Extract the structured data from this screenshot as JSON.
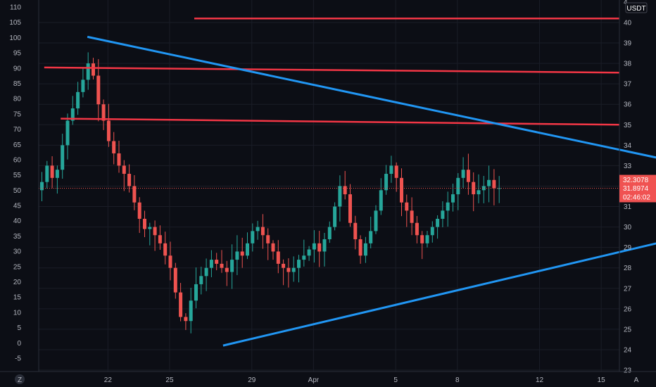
{
  "chart_data": {
    "type": "candlestick",
    "currency_label": "USDT",
    "left_axis": {
      "ticks": [
        110,
        105,
        100,
        95,
        90,
        85,
        80,
        75,
        70,
        65,
        60,
        55,
        50,
        45,
        40,
        35,
        30,
        25,
        20,
        15,
        10,
        5,
        0,
        -5
      ]
    },
    "right_axis": {
      "ticks": [
        40,
        39,
        38,
        37,
        36,
        35,
        34,
        33,
        32,
        31,
        30,
        29,
        28,
        27,
        26,
        25,
        24,
        23
      ],
      "top_partial_label": "4"
    },
    "x_axis": {
      "ticks": [
        "22",
        "25",
        "29",
        "Apr",
        "5",
        "8",
        "12",
        "15"
      ]
    },
    "price_labels": {
      "upper": "32.3078",
      "current": "31.8974",
      "countdown": "02:46:02"
    },
    "current_price": 31.8974,
    "corner_labels": {
      "left": "Z",
      "right": "A"
    },
    "colors": {
      "up": "#26a69a",
      "down": "#ef5350",
      "horizontal_lines": "#f23645",
      "trendlines": "#2196f3",
      "background": "#0c0e15"
    },
    "horizontal_levels": [
      {
        "start_day": 7.5,
        "price": 40.2
      },
      {
        "start_day": 0.2,
        "price": 37.8,
        "end_price": 37.55
      },
      {
        "start_day": 1.0,
        "price": 35.3,
        "end_price": 35.0
      }
    ],
    "trendlines": [
      {
        "from_day": 2.3,
        "from_price": 39.3,
        "to_day": 38.4,
        "to_price": 31.6
      },
      {
        "from_day": 8.9,
        "from_price": 24.2,
        "to_day": 38.0,
        "to_price": 31.1
      }
    ],
    "close_series": [
      32.2,
      33.0,
      32.4,
      32.8,
      34.0,
      35.2,
      35.8,
      36.6,
      37.2,
      38.0,
      37.4,
      36.0,
      35.2,
      34.2,
      33.6,
      33.0,
      32.6,
      32.0,
      31.2,
      30.4,
      29.9,
      30.0,
      29.6,
      29.2,
      28.6,
      28.0,
      26.8,
      25.6,
      25.4,
      26.4,
      27.2,
      27.6,
      28.0,
      28.4,
      28.2,
      28.0,
      27.8,
      28.4,
      28.8,
      28.6,
      29.2,
      29.8,
      30.0,
      29.6,
      29.2,
      28.8,
      28.2,
      28.0,
      27.8,
      28.0,
      28.4,
      28.6,
      28.9,
      29.2,
      28.8,
      29.4,
      30.0,
      31.0,
      32.0,
      31.6,
      30.2,
      29.4,
      28.6,
      29.2,
      29.8,
      30.8,
      31.8,
      32.6,
      33.0,
      32.4,
      31.2,
      30.8,
      30.2,
      29.6,
      29.2,
      29.6,
      30.0,
      30.4,
      30.8,
      31.2,
      31.6,
      32.4,
      32.8,
      32.2,
      31.6,
      31.8,
      32.0,
      32.3,
      31.9,
      31.9
    ]
  }
}
